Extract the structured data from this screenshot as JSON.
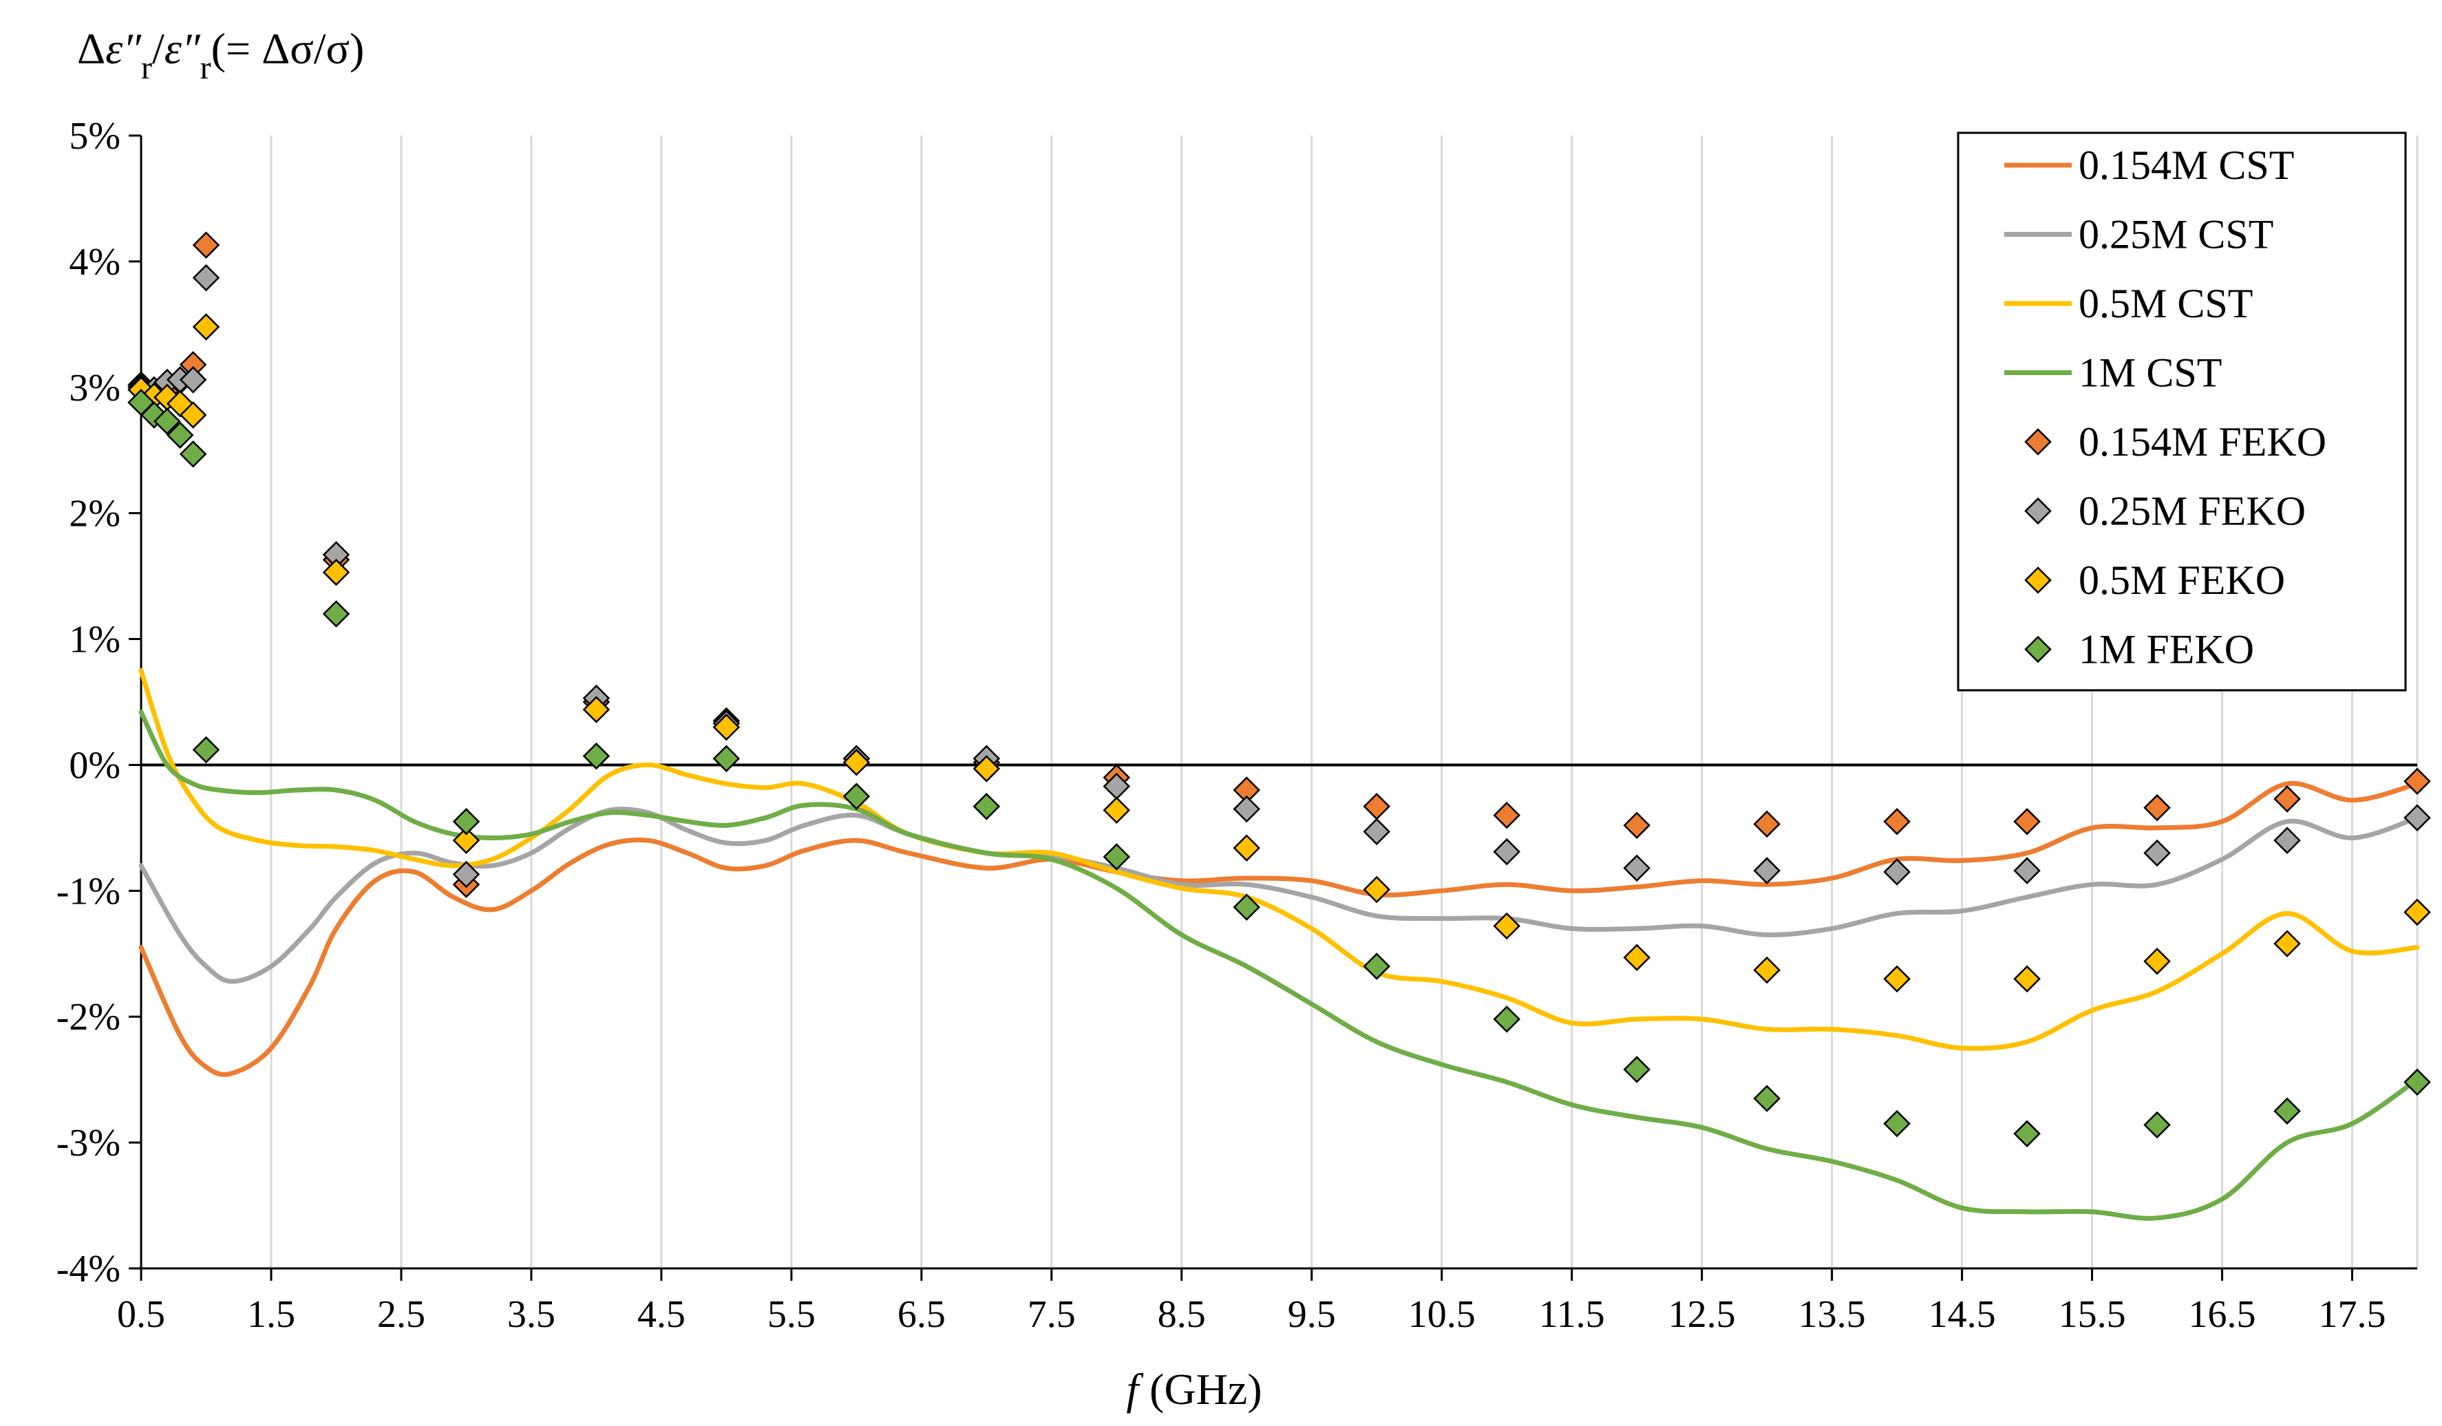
{
  "chart_data": {
    "type": "line+scatter",
    "title": "",
    "ylabel_parts": {
      "delta": "Δ",
      "eps": "ε",
      "pp": "″",
      "sub": "r",
      "slash": "/",
      "rhs": "(= Δσ/σ)"
    },
    "xlabel_parts": {
      "f": "f",
      "unit": " (GHz)"
    },
    "xlim": [
      0.5,
      18.0
    ],
    "ylim": [
      -4,
      5
    ],
    "x_ticks": [
      "0.5",
      "1.5",
      "2.5",
      "3.5",
      "4.5",
      "5.5",
      "6.5",
      "7.5",
      "8.5",
      "9.5",
      "10.5",
      "11.5",
      "12.5",
      "13.5",
      "14.5",
      "15.5",
      "16.5",
      "17.5"
    ],
    "x_tick_values": [
      0.5,
      1.5,
      2.5,
      3.5,
      4.5,
      5.5,
      6.5,
      7.5,
      8.5,
      9.5,
      10.5,
      11.5,
      12.5,
      13.5,
      14.5,
      15.5,
      16.5,
      17.5
    ],
    "y_ticks": [
      "5%",
      "4%",
      "3%",
      "2%",
      "1%",
      "0%",
      "-1%",
      "-2%",
      "-3%",
      "-4%"
    ],
    "y_tick_values": [
      5,
      4,
      3,
      2,
      1,
      0,
      -1,
      -2,
      -3,
      -4
    ],
    "grid": true,
    "legend_position": "top-right",
    "colors": {
      "orange": "#ED7D31",
      "gray": "#A5A5A5",
      "yellow": "#FFC000",
      "green": "#70AD47"
    },
    "line_series": [
      {
        "name": "0.154M CST",
        "color": "#ED7D31",
        "x": [
          0.5,
          0.8,
          1.0,
          1.2,
          1.5,
          1.8,
          2.0,
          2.3,
          2.6,
          2.9,
          3.2,
          3.5,
          3.8,
          4.1,
          4.4,
          4.7,
          5.0,
          5.3,
          5.6,
          6.0,
          6.4,
          7.0,
          7.5,
          8.0,
          8.5,
          9.0,
          9.5,
          10.0,
          10.5,
          11.0,
          11.5,
          12.0,
          12.5,
          13.0,
          13.5,
          14.0,
          14.5,
          15.0,
          15.5,
          16.0,
          16.5,
          17.0,
          17.5,
          18.0
        ],
        "y": [
          -1.45,
          -2.15,
          -2.4,
          -2.45,
          -2.25,
          -1.75,
          -1.3,
          -0.92,
          -0.85,
          -1.05,
          -1.15,
          -1.0,
          -0.78,
          -0.63,
          -0.6,
          -0.7,
          -0.82,
          -0.8,
          -0.68,
          -0.6,
          -0.7,
          -0.82,
          -0.75,
          -0.85,
          -0.92,
          -0.9,
          -0.92,
          -1.03,
          -1.0,
          -0.95,
          -1.0,
          -0.97,
          -0.92,
          -0.95,
          -0.9,
          -0.75,
          -0.76,
          -0.7,
          -0.5,
          -0.5,
          -0.45,
          -0.15,
          -0.28,
          -0.15
        ]
      },
      {
        "name": "0.25M CST",
        "color": "#A5A5A5",
        "x": [
          0.5,
          0.8,
          1.0,
          1.2,
          1.5,
          1.8,
          2.0,
          2.3,
          2.6,
          2.9,
          3.2,
          3.5,
          3.8,
          4.1,
          4.4,
          4.7,
          5.0,
          5.3,
          5.6,
          6.0,
          6.4,
          7.0,
          7.5,
          8.0,
          8.5,
          9.0,
          9.5,
          10.0,
          10.5,
          11.0,
          11.5,
          12.0,
          12.5,
          13.0,
          13.5,
          14.0,
          14.5,
          15.0,
          15.5,
          16.0,
          16.5,
          17.0,
          17.5,
          18.0
        ],
        "y": [
          -0.8,
          -1.35,
          -1.6,
          -1.72,
          -1.6,
          -1.3,
          -1.05,
          -0.78,
          -0.7,
          -0.78,
          -0.8,
          -0.7,
          -0.5,
          -0.36,
          -0.38,
          -0.52,
          -0.62,
          -0.6,
          -0.48,
          -0.4,
          -0.55,
          -0.7,
          -0.72,
          -0.82,
          -0.95,
          -0.95,
          -1.05,
          -1.2,
          -1.22,
          -1.22,
          -1.3,
          -1.3,
          -1.28,
          -1.35,
          -1.3,
          -1.18,
          -1.16,
          -1.05,
          -0.95,
          -0.95,
          -0.75,
          -0.45,
          -0.58,
          -0.42
        ]
      },
      {
        "name": "0.5M CST",
        "color": "#FFC000",
        "x": [
          0.5,
          0.7,
          0.9,
          1.1,
          1.4,
          1.7,
          2.0,
          2.3,
          2.6,
          2.9,
          3.2,
          3.5,
          3.8,
          4.1,
          4.4,
          4.7,
          5.0,
          5.3,
          5.6,
          6.0,
          6.4,
          7.0,
          7.5,
          8.0,
          8.5,
          9.0,
          9.5,
          10.0,
          10.5,
          11.0,
          11.5,
          12.0,
          12.5,
          13.0,
          13.5,
          14.0,
          14.5,
          15.0,
          15.5,
          16.0,
          16.5,
          17.0,
          17.5,
          18.0
        ],
        "y": [
          0.75,
          0.1,
          -0.28,
          -0.5,
          -0.6,
          -0.64,
          -0.65,
          -0.68,
          -0.75,
          -0.8,
          -0.75,
          -0.58,
          -0.35,
          -0.08,
          0.0,
          -0.08,
          -0.15,
          -0.18,
          -0.15,
          -0.3,
          -0.55,
          -0.7,
          -0.7,
          -0.85,
          -0.98,
          -1.05,
          -1.3,
          -1.65,
          -1.72,
          -1.85,
          -2.05,
          -2.02,
          -2.02,
          -2.1,
          -2.1,
          -2.15,
          -2.25,
          -2.2,
          -1.95,
          -1.8,
          -1.5,
          -1.18,
          -1.48,
          -1.45
        ]
      },
      {
        "name": "1M CST",
        "color": "#70AD47",
        "x": [
          0.5,
          0.7,
          0.9,
          1.1,
          1.4,
          1.7,
          2.0,
          2.3,
          2.6,
          2.9,
          3.2,
          3.5,
          3.8,
          4.1,
          4.4,
          4.7,
          5.0,
          5.3,
          5.6,
          6.0,
          6.4,
          7.0,
          7.5,
          8.0,
          8.5,
          9.0,
          9.5,
          10.0,
          10.5,
          11.0,
          11.5,
          12.0,
          12.5,
          13.0,
          13.5,
          14.0,
          14.5,
          15.0,
          15.5,
          16.0,
          16.5,
          17.0,
          17.5,
          18.0
        ],
        "y": [
          0.42,
          0.0,
          -0.15,
          -0.2,
          -0.22,
          -0.2,
          -0.2,
          -0.28,
          -0.45,
          -0.55,
          -0.58,
          -0.55,
          -0.45,
          -0.38,
          -0.4,
          -0.45,
          -0.48,
          -0.42,
          -0.32,
          -0.35,
          -0.55,
          -0.7,
          -0.75,
          -0.98,
          -1.35,
          -1.6,
          -1.9,
          -2.2,
          -2.38,
          -2.52,
          -2.7,
          -2.8,
          -2.88,
          -3.05,
          -3.15,
          -3.3,
          -3.52,
          -3.55,
          -3.55,
          -3.6,
          -3.45,
          -3.0,
          -2.85,
          -2.5
        ]
      }
    ],
    "scatter_series": [
      {
        "name": "0.154M FEKO",
        "color": "#ED7D31",
        "x": [
          0.5,
          0.6,
          0.7,
          0.8,
          0.9,
          1.0,
          2,
          3,
          4,
          5,
          6,
          7,
          8,
          9,
          10,
          11,
          12,
          13,
          14,
          15,
          16,
          17,
          18
        ],
        "y": [
          3.02,
          2.97,
          2.98,
          3.05,
          3.18,
          4.13,
          1.63,
          -0.95,
          0.5,
          0.35,
          0.05,
          0.02,
          -0.1,
          -0.2,
          -0.33,
          -0.4,
          -0.48,
          -0.47,
          -0.45,
          -0.45,
          -0.34,
          -0.27,
          -0.13
        ]
      },
      {
        "name": "0.25M FEKO",
        "color": "#A5A5A5",
        "x": [
          0.5,
          0.6,
          0.7,
          0.8,
          0.9,
          1.0,
          2,
          3,
          4,
          5,
          6,
          7,
          8,
          9,
          10,
          11,
          12,
          13,
          14,
          15,
          16,
          17,
          18
        ],
        "y": [
          3.0,
          2.98,
          3.04,
          3.06,
          3.06,
          3.87,
          1.67,
          -0.87,
          0.53,
          0.33,
          0.05,
          0.05,
          -0.17,
          -0.35,
          -0.53,
          -0.69,
          -0.82,
          -0.84,
          -0.85,
          -0.84,
          -0.7,
          -0.6,
          -0.42
        ]
      },
      {
        "name": "0.5M FEKO",
        "color": "#FFC000",
        "x": [
          0.5,
          0.6,
          0.7,
          0.8,
          0.9,
          1.0,
          2,
          3,
          4,
          5,
          6,
          7,
          8,
          9,
          10,
          11,
          12,
          13,
          14,
          15,
          16,
          17,
          18
        ],
        "y": [
          2.98,
          2.93,
          2.92,
          2.87,
          2.78,
          3.48,
          1.53,
          -0.6,
          0.44,
          0.3,
          0.02,
          -0.03,
          -0.36,
          -0.66,
          -0.99,
          -1.28,
          -1.53,
          -1.63,
          -1.7,
          -1.7,
          -1.56,
          -1.42,
          -1.17
        ]
      },
      {
        "name": "1M FEKO",
        "color": "#70AD47",
        "x": [
          0.5,
          0.6,
          0.7,
          0.8,
          0.9,
          1.0,
          2,
          3,
          4,
          5,
          6,
          7,
          8,
          9,
          10,
          11,
          12,
          13,
          14,
          15,
          16,
          17,
          18
        ],
        "y": [
          2.88,
          2.78,
          2.73,
          2.62,
          2.47,
          0.12,
          1.2,
          -0.45,
          0.07,
          0.05,
          -0.25,
          -0.33,
          -0.73,
          -1.13,
          -1.6,
          -2.02,
          -2.42,
          -2.65,
          -2.85,
          -2.93,
          -2.86,
          -2.75,
          -2.52
        ]
      }
    ],
    "legend": [
      "0.154M CST",
      "0.25M CST",
      "0.5M CST",
      "1M CST",
      "0.154M FEKO",
      "0.25M FEKO",
      "0.5M FEKO",
      "1M FEKO"
    ]
  }
}
